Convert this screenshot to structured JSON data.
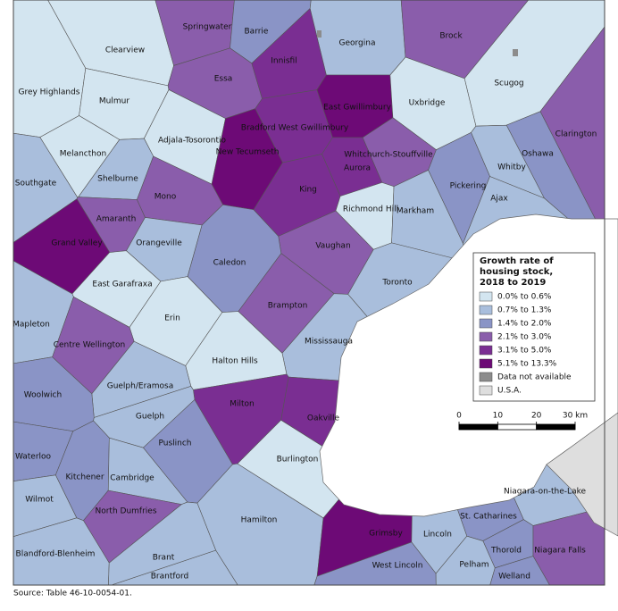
{
  "map": {
    "regions": [
      {
        "name": "Clearview",
        "class": 0
      },
      {
        "name": "Grey Highlands",
        "class": 0
      },
      {
        "name": "Springwater",
        "class": 3
      },
      {
        "name": "Barrie",
        "class": 2
      },
      {
        "name": "Georgina",
        "class": 1
      },
      {
        "name": "Brock",
        "class": 3
      },
      {
        "name": "Scugog",
        "class": 0
      },
      {
        "name": "Essa",
        "class": 3
      },
      {
        "name": "Innisfil",
        "class": 4
      },
      {
        "name": "East Gwillimbury",
        "class": 5
      },
      {
        "name": "Uxbridge",
        "class": 0
      },
      {
        "name": "Mulmur",
        "class": 0
      },
      {
        "name": "Adjala-Tosorontio",
        "class": 0
      },
      {
        "name": "Bradford West Gwillimbury",
        "class": 4
      },
      {
        "name": "New Tecumseth",
        "class": 5
      },
      {
        "name": "Clarington",
        "class": 3
      },
      {
        "name": "Melancthon",
        "class": 0
      },
      {
        "name": "Whitchurch-Stouffville",
        "class": 3
      },
      {
        "name": "Oshawa",
        "class": 2
      },
      {
        "name": "Aurora",
        "class": 4
      },
      {
        "name": "Shelburne",
        "class": 1
      },
      {
        "name": "Southgate",
        "class": 1
      },
      {
        "name": "Whitby",
        "class": 1
      },
      {
        "name": "Mono",
        "class": 3
      },
      {
        "name": "King",
        "class": 4
      },
      {
        "name": "Pickering",
        "class": 2
      },
      {
        "name": "Ajax",
        "class": 1
      },
      {
        "name": "Richmond Hill",
        "class": 0
      },
      {
        "name": "Markham",
        "class": 1
      },
      {
        "name": "Amaranth",
        "class": 3
      },
      {
        "name": "Grand Valley",
        "class": 5
      },
      {
        "name": "Orangeville",
        "class": 1
      },
      {
        "name": "Vaughan",
        "class": 3
      },
      {
        "name": "Caledon",
        "class": 2
      },
      {
        "name": "East Garafraxa",
        "class": 0
      },
      {
        "name": "Toronto",
        "class": 1
      },
      {
        "name": "Brampton",
        "class": 3
      },
      {
        "name": "Erin",
        "class": 0
      },
      {
        "name": "Mapleton",
        "class": 1
      },
      {
        "name": "Centre Wellington",
        "class": 3
      },
      {
        "name": "Mississauga",
        "class": 1
      },
      {
        "name": "Halton Hills",
        "class": 0
      },
      {
        "name": "Guelph/Eramosa",
        "class": 1
      },
      {
        "name": "Milton",
        "class": 4
      },
      {
        "name": "Oakville",
        "class": 4
      },
      {
        "name": "Woolwich",
        "class": 2
      },
      {
        "name": "Guelph",
        "class": 1
      },
      {
        "name": "Puslinch",
        "class": 2
      },
      {
        "name": "Burlington",
        "class": 0
      },
      {
        "name": "Waterloo",
        "class": 2
      },
      {
        "name": "Kitchener",
        "class": 2
      },
      {
        "name": "Cambridge",
        "class": 1
      },
      {
        "name": "Wilmot",
        "class": 1
      },
      {
        "name": "North Dumfries",
        "class": 3
      },
      {
        "name": "Hamilton",
        "class": 1
      },
      {
        "name": "Niagara-on-the-Lake",
        "class": 1
      },
      {
        "name": "St. Catharines",
        "class": 2
      },
      {
        "name": "Grimsby",
        "class": 5
      },
      {
        "name": "Lincoln",
        "class": 1
      },
      {
        "name": "Blandford-Blenheim",
        "class": 1
      },
      {
        "name": "Brant",
        "class": 1
      },
      {
        "name": "Thorold",
        "class": 2
      },
      {
        "name": "Niagara Falls",
        "class": 3
      },
      {
        "name": "West Lincoln",
        "class": 2
      },
      {
        "name": "Pelham",
        "class": 1
      },
      {
        "name": "Brantford",
        "class": 1
      },
      {
        "name": "Welland",
        "class": 2
      }
    ],
    "legend": {
      "title": [
        "Growth rate of",
        "housing stock,",
        "2018 to 2019"
      ],
      "entries": [
        {
          "label": "0.0% to 0.6%",
          "color": "#d3e5f0"
        },
        {
          "label": "0.7% to 1.3%",
          "color": "#a9bedc"
        },
        {
          "label": "1.4% to 2.0%",
          "color": "#8a94c6"
        },
        {
          "label": "2.1% to 3.0%",
          "color": "#8a5dab"
        },
        {
          "label": "3.1% to 5.0%",
          "color": "#7a2e92"
        },
        {
          "label": "5.1% to 13.3%",
          "color": "#6d0a76"
        },
        {
          "label": "Data not available",
          "color": "#8c8c8c"
        },
        {
          "label": "U.S.A.",
          "color": "#dedede"
        }
      ]
    },
    "scale": {
      "ticks": [
        0,
        10,
        20,
        {
          "value": 30,
          "label": "30 km"
        }
      ]
    },
    "source": "Source: Table 46-10-0054-01."
  }
}
